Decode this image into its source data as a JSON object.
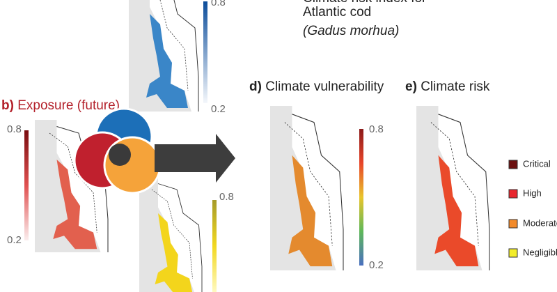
{
  "header": {
    "title_line1": "Climate risk index for",
    "title_line2": "Atlantic cod",
    "species": "(Gadus morhua)"
  },
  "panels": [
    {
      "letter": "b)",
      "title": "Exposure (future)",
      "scale_max": "0.8",
      "scale_min": "0.2"
    },
    {
      "letter": "d)",
      "title": "Climate vulnerability",
      "scale_max": "0.8",
      "scale_min": "0.2"
    },
    {
      "letter": "e)",
      "title": "Climate risk"
    }
  ],
  "top_map_scale": {
    "scale_max": "0.8",
    "scale_min": "0.2"
  },
  "bottom_map_scale": {
    "scale_max": "0.8"
  },
  "legend": [
    "Critical",
    "High",
    "Moderate",
    "Negligible"
  ]
}
